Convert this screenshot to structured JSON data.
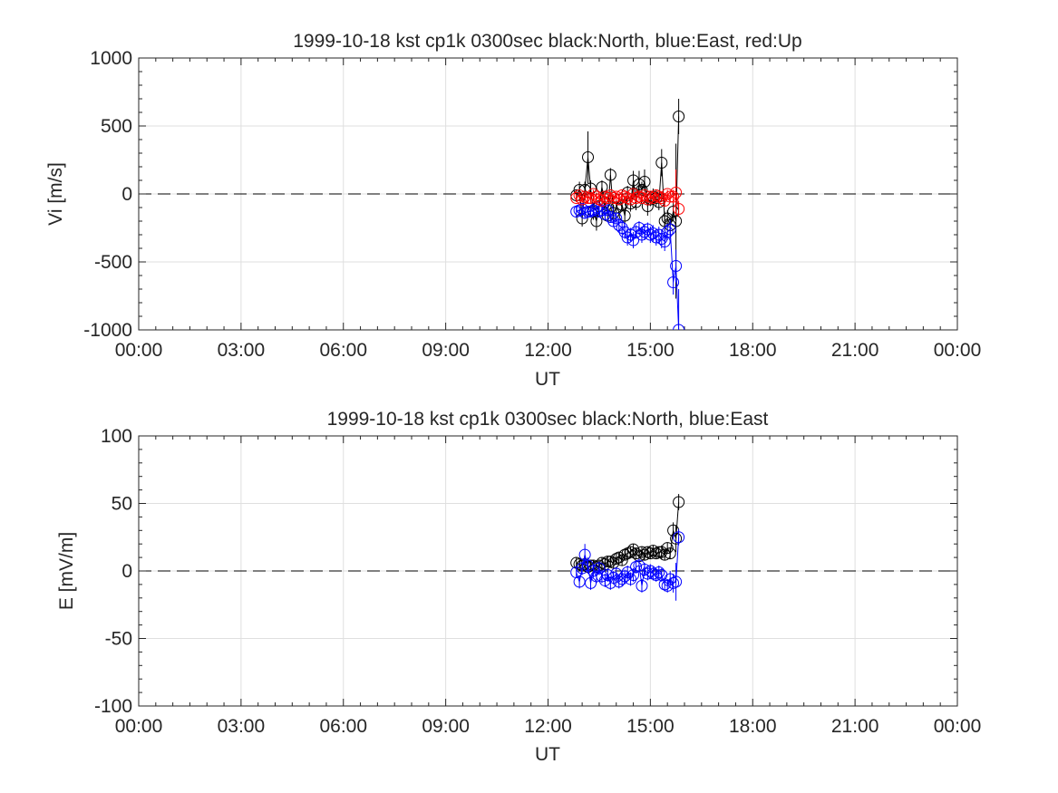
{
  "chart_data": [
    {
      "type": "scatter",
      "title": "1999-10-18 kst cp1k 0300sec black:North, blue:East, red:Up",
      "xlabel": "UT",
      "ylabel": "Vi [m/s]",
      "xlim": [
        0,
        24
      ],
      "ylim": [
        -1000,
        1000
      ],
      "xtick_values": [
        0,
        3,
        6,
        9,
        12,
        15,
        18,
        21,
        24
      ],
      "xtick_labels": [
        "00:00",
        "03:00",
        "06:00",
        "09:00",
        "12:00",
        "15:00",
        "18:00",
        "21:00",
        "00:00"
      ],
      "ytick_values": [
        -1000,
        -500,
        0,
        500,
        1000
      ],
      "ytick_labels": [
        "-1000",
        "-500",
        "0",
        "500",
        "1000"
      ],
      "grid": true,
      "zero_line": "dashed",
      "markers": "open-circle",
      "series": [
        {
          "color": "#000000",
          "x": [
            12.83,
            12.92,
            13.0,
            13.08,
            13.17,
            13.25,
            13.33,
            13.42,
            13.5,
            13.58,
            13.67,
            13.75,
            13.83,
            13.92,
            14.0,
            14.08,
            14.17,
            14.25,
            14.33,
            14.42,
            14.5,
            14.58,
            14.67,
            14.75,
            14.83,
            14.92,
            15.0,
            15.08,
            15.17,
            15.25,
            15.33,
            15.42,
            15.5,
            15.58,
            15.67,
            15.75,
            15.83
          ],
          "y": [
            -10,
            30,
            -180,
            30,
            270,
            40,
            -130,
            -200,
            -90,
            50,
            -60,
            -160,
            140,
            -140,
            -100,
            -40,
            -80,
            -160,
            10,
            -70,
            100,
            -60,
            70,
            30,
            90,
            -90,
            -40,
            -20,
            -30,
            -60,
            230,
            -200,
            -180,
            -230,
            -130,
            -200,
            570
          ],
          "err": [
            40,
            60,
            60,
            60,
            190,
            60,
            60,
            70,
            50,
            50,
            40,
            40,
            50,
            60,
            50,
            40,
            50,
            60,
            50,
            60,
            70,
            60,
            100,
            60,
            90,
            70,
            50,
            60,
            60,
            60,
            100,
            70,
            60,
            60,
            70,
            570,
            130
          ]
        },
        {
          "color": "#0000ff",
          "x": [
            12.83,
            12.92,
            13.0,
            13.08,
            13.17,
            13.25,
            13.33,
            13.42,
            13.5,
            13.58,
            13.67,
            13.75,
            13.83,
            13.92,
            14.0,
            14.08,
            14.17,
            14.25,
            14.33,
            14.42,
            14.5,
            14.58,
            14.67,
            14.75,
            14.83,
            14.92,
            15.0,
            15.08,
            15.17,
            15.25,
            15.33,
            15.42,
            15.5,
            15.58,
            15.67,
            15.75,
            15.83
          ],
          "y": [
            -130,
            -120,
            -110,
            -140,
            -130,
            -130,
            -120,
            -100,
            -130,
            -120,
            -150,
            -120,
            -170,
            -200,
            -180,
            -230,
            -250,
            -280,
            -320,
            -300,
            -340,
            -280,
            -250,
            -300,
            -280,
            -260,
            -300,
            -290,
            -320,
            -300,
            -330,
            -350,
            -280,
            -260,
            -650,
            -530,
            -1000
          ],
          "err": [
            40,
            40,
            40,
            40,
            40,
            40,
            40,
            40,
            40,
            40,
            40,
            40,
            40,
            40,
            40,
            50,
            50,
            50,
            60,
            50,
            60,
            50,
            50,
            60,
            60,
            50,
            60,
            60,
            60,
            60,
            70,
            70,
            60,
            70,
            90,
            120,
            300
          ]
        },
        {
          "color": "#ff0000",
          "x": [
            12.83,
            12.92,
            13.0,
            13.08,
            13.17,
            13.25,
            13.33,
            13.42,
            13.5,
            13.58,
            13.67,
            13.75,
            13.83,
            13.92,
            14.0,
            14.08,
            14.17,
            14.25,
            14.33,
            14.42,
            14.5,
            14.58,
            14.67,
            14.75,
            14.83,
            14.92,
            15.0,
            15.08,
            15.17,
            15.25,
            15.33,
            15.42,
            15.5,
            15.58,
            15.67,
            15.75,
            15.83
          ],
          "y": [
            -30,
            -10,
            -40,
            -20,
            -30,
            -30,
            0,
            -20,
            -40,
            -50,
            -20,
            -30,
            -10,
            -30,
            -20,
            -40,
            -10,
            -20,
            -30,
            -40,
            0,
            -30,
            -20,
            -30,
            -10,
            -40,
            -20,
            -30,
            -10,
            -20,
            -30,
            -50,
            0,
            -20,
            -20,
            10,
            -110
          ],
          "err": [
            30,
            30,
            30,
            30,
            40,
            30,
            30,
            30,
            30,
            30,
            30,
            30,
            30,
            30,
            30,
            30,
            30,
            30,
            30,
            30,
            30,
            30,
            30,
            30,
            30,
            30,
            30,
            30,
            30,
            30,
            30,
            40,
            30,
            30,
            50,
            170,
            60
          ]
        }
      ]
    },
    {
      "type": "scatter",
      "title": "1999-10-18 kst cp1k 0300sec black:North, blue:East",
      "xlabel": "UT",
      "ylabel": "E [mV/m]",
      "xlim": [
        0,
        24
      ],
      "ylim": [
        -100,
        100
      ],
      "xtick_values": [
        0,
        3,
        6,
        9,
        12,
        15,
        18,
        21,
        24
      ],
      "xtick_labels": [
        "00:00",
        "03:00",
        "06:00",
        "09:00",
        "12:00",
        "15:00",
        "18:00",
        "21:00",
        "00:00"
      ],
      "ytick_values": [
        -100,
        -50,
        0,
        50,
        100
      ],
      "ytick_labels": [
        "-100",
        "-50",
        "0",
        "50",
        "100"
      ],
      "grid": true,
      "zero_line": "dashed",
      "markers": "open-circle",
      "series": [
        {
          "color": "#000000",
          "x": [
            12.83,
            12.92,
            13.0,
            13.08,
            13.17,
            13.25,
            13.33,
            13.42,
            13.5,
            13.58,
            13.67,
            13.75,
            13.83,
            13.92,
            14.0,
            14.08,
            14.17,
            14.25,
            14.33,
            14.42,
            14.5,
            14.58,
            14.67,
            14.75,
            14.83,
            14.92,
            15.0,
            15.08,
            15.17,
            15.25,
            15.33,
            15.42,
            15.5,
            15.58,
            15.67,
            15.75,
            15.83
          ],
          "y": [
            6,
            5,
            4,
            5,
            3,
            4,
            4,
            3,
            4,
            6,
            5,
            7,
            7,
            6,
            9,
            10,
            8,
            12,
            13,
            14,
            16,
            13,
            11,
            14,
            12,
            14,
            13,
            15,
            13,
            14,
            14,
            12,
            17,
            13,
            30,
            24,
            51
          ],
          "err": [
            4,
            4,
            4,
            4,
            5,
            4,
            4,
            4,
            4,
            4,
            4,
            4,
            4,
            4,
            4,
            4,
            4,
            4,
            4,
            4,
            4,
            4,
            4,
            4,
            4,
            4,
            4,
            4,
            4,
            4,
            5,
            4,
            4,
            4,
            6,
            10,
            6
          ]
        },
        {
          "color": "#0000ff",
          "x": [
            12.83,
            12.92,
            13.0,
            13.08,
            13.17,
            13.25,
            13.33,
            13.42,
            13.5,
            13.58,
            13.67,
            13.75,
            13.83,
            13.92,
            14.0,
            14.08,
            14.17,
            14.25,
            14.33,
            14.42,
            14.5,
            14.58,
            14.67,
            14.75,
            14.83,
            14.92,
            15.0,
            15.08,
            15.17,
            15.25,
            15.33,
            15.42,
            15.5,
            15.58,
            15.67,
            15.75,
            15.83
          ],
          "y": [
            -1,
            -8,
            2,
            12,
            4,
            -9,
            0,
            -4,
            2,
            -4,
            -7,
            -3,
            -9,
            -5,
            -2,
            -8,
            -6,
            -4,
            -1,
            -6,
            -3,
            3,
            4,
            -11,
            1,
            -2,
            0,
            -2,
            -3,
            -1,
            -3,
            -10,
            -11,
            -6,
            -9,
            -8,
            25
          ],
          "err": [
            4,
            5,
            5,
            8,
            6,
            5,
            5,
            5,
            5,
            5,
            5,
            5,
            5,
            5,
            5,
            5,
            5,
            5,
            5,
            5,
            5,
            5,
            5,
            5,
            5,
            5,
            5,
            5,
            5,
            5,
            5,
            5,
            5,
            6,
            7,
            14,
            6
          ]
        }
      ]
    }
  ]
}
